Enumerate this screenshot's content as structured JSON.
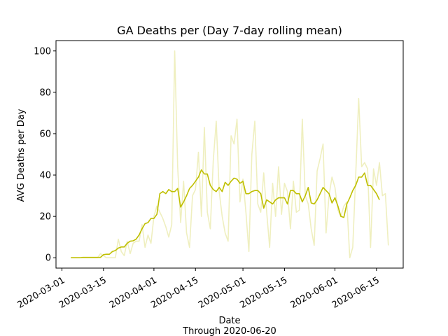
{
  "chart_data": {
    "type": "line",
    "title": "GA Deaths per (Day 7-day rolling mean)",
    "xlabel": "Date",
    "xlabel_note": "Through 2020-06-20",
    "ylabel": "AVG Deaths per Day",
    "xlim": [
      "2020-02-28",
      "2020-06-24"
    ],
    "ylim": [
      -5,
      105
    ],
    "x_ticks": [
      "2020-03-01",
      "2020-03-15",
      "2020-04-01",
      "2020-04-15",
      "2020-05-01",
      "2020-05-15",
      "2020-06-01",
      "2020-06-15"
    ],
    "y_ticks": [
      0,
      20,
      40,
      60,
      80,
      100
    ],
    "grid": false,
    "legend": "none",
    "series": [
      {
        "role": "daily",
        "color": "#bfbf00",
        "opacity": 0.25,
        "x_start": "2020-03-04",
        "values": [
          0,
          0,
          0,
          0,
          0,
          0,
          0,
          0,
          0,
          0,
          2,
          1,
          0,
          0,
          0,
          0,
          9,
          3,
          1,
          8,
          2,
          7,
          8,
          8,
          16,
          5,
          11,
          7,
          20,
          25,
          22,
          19,
          15,
          10,
          16,
          100,
          44,
          17,
          37,
          12,
          5,
          30,
          33,
          51,
          20,
          63,
          22,
          14,
          47,
          66,
          32,
          20,
          12,
          8,
          59,
          55,
          67,
          27,
          38,
          22,
          3,
          50,
          66,
          26,
          22,
          41,
          22,
          5,
          36,
          20,
          44,
          21,
          36,
          32,
          14,
          37,
          22,
          23,
          67,
          30,
          26,
          14,
          6,
          42,
          48,
          55,
          12,
          30,
          39,
          34,
          23,
          20,
          25,
          27,
          0,
          5,
          40,
          77,
          44,
          46,
          43,
          5,
          43,
          35,
          46,
          30,
          31,
          6
        ]
      },
      {
        "role": "rolling-mean",
        "color": "#bfbf00",
        "opacity": 1,
        "x_start": "2020-03-04",
        "values": [
          0,
          0,
          0,
          0,
          0.2,
          0.2,
          0.2,
          0.2,
          0.2,
          0.2,
          0.2,
          1.5,
          1.7,
          1.7,
          3,
          3.5,
          4.7,
          5.2,
          5.2,
          7,
          8,
          8.2,
          9,
          11,
          14,
          16.5,
          17,
          19,
          19,
          21,
          31,
          32,
          31,
          33,
          32,
          32,
          33.5,
          24.5,
          27,
          30,
          33.5,
          35,
          37,
          39,
          42.5,
          40.5,
          40.5,
          35,
          33,
          32,
          34,
          32,
          36.5,
          35,
          37,
          38.5,
          38,
          36,
          37,
          31,
          31,
          32,
          32.5,
          32.5,
          31,
          24,
          28,
          27,
          26,
          28,
          29,
          29,
          29,
          26,
          32.5,
          32.5,
          31,
          31,
          27,
          30,
          34,
          26.5,
          26,
          28,
          31,
          34,
          32.5,
          31,
          26.5,
          29,
          25,
          20,
          19.5,
          26,
          29,
          32.5,
          35,
          39,
          39,
          41,
          35,
          35,
          33,
          31,
          28
        ]
      }
    ]
  }
}
